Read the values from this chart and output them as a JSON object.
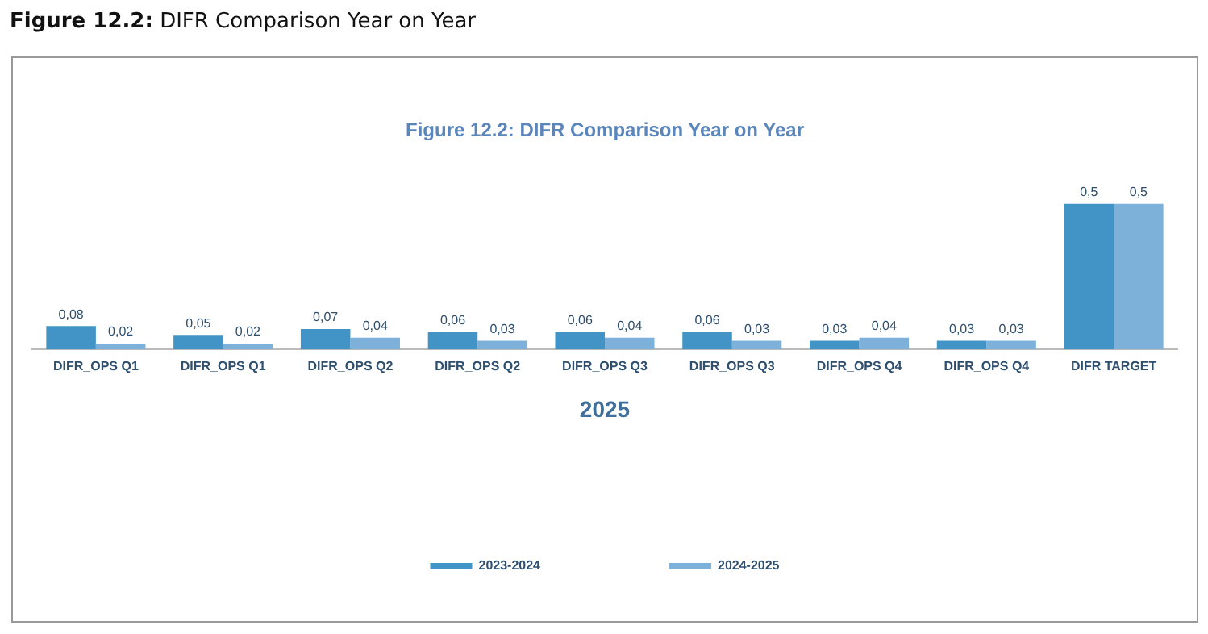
{
  "chart_data": {
    "type": "bar",
    "title": "Figure 12.2: DIFR Comparison Year on Year",
    "annotations": [
      "Figure 12.2: DIFR Comparison Year on Year"
    ],
    "xlabel": "2025",
    "categories": [
      "DIFR_OPS Q1",
      "DIFR_OPS Q1",
      "DIFR_OPS Q2",
      "DIFR_OPS Q2",
      "DIFR_OPS Q3",
      "DIFR_OPS Q3",
      "DIFR_OPS Q4",
      "DIFR_OPS Q4",
      "DIFR TARGET"
    ],
    "series": [
      {
        "name": "2023-2024",
        "color": "#4394c6",
        "values": [
          0.08,
          0.05,
          0.07,
          0.06,
          0.06,
          0.06,
          0.03,
          0.03,
          0.5
        ],
        "value_labels": [
          "0,08",
          "0,05",
          "0,07",
          "0,06",
          "0,06",
          "0,06",
          "0,03",
          "0,03",
          "0,5"
        ]
      },
      {
        "name": "2024-2025",
        "color": "#7eb1da",
        "values": [
          0.02,
          0.02,
          0.04,
          0.03,
          0.04,
          0.03,
          0.04,
          0.03,
          0.5
        ],
        "value_labels": [
          "0,02",
          "0,02",
          "0,04",
          "0,03",
          "0,04",
          "0,03",
          "0,04",
          "0,03",
          "0,5"
        ]
      }
    ],
    "legend": "bottom",
    "grid": false
  }
}
